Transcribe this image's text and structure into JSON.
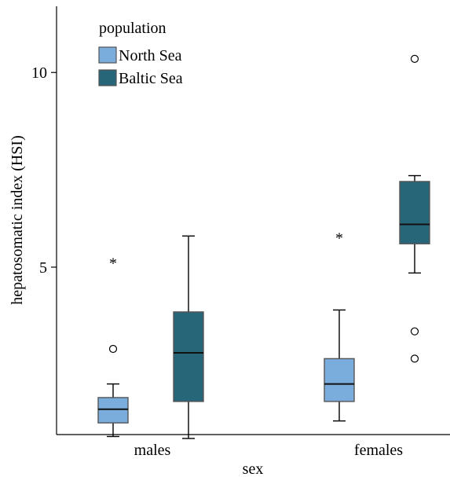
{
  "chart_data": {
    "type": "boxplot",
    "xlabel": "sex",
    "ylabel": "hepatosomatic index (HSI)",
    "categories": [
      "males",
      "females"
    ],
    "yticks": [
      5,
      10
    ],
    "ylim": [
      0.7,
      11.7
    ],
    "legend": {
      "title": "population",
      "placement": "top-left"
    },
    "series": [
      {
        "name": "North Sea",
        "color": "#7aaddc",
        "boxes": [
          {
            "category": "males",
            "whisker_low": 0.65,
            "q1": 1.0,
            "median": 1.35,
            "q3": 1.65,
            "whisker_high": 2.0,
            "outliers": [
              {
                "value": 2.9,
                "symbol": "circle"
              },
              {
                "value": 5.15,
                "symbol": "star"
              }
            ]
          },
          {
            "category": "females",
            "whisker_low": 1.05,
            "q1": 1.55,
            "median": 2.0,
            "q3": 2.65,
            "whisker_high": 3.9,
            "outliers": [
              {
                "value": 5.8,
                "symbol": "star"
              }
            ]
          }
        ]
      },
      {
        "name": "Baltic Sea",
        "color": "#276579",
        "boxes": [
          {
            "category": "males",
            "whisker_low": 0.6,
            "q1": 1.55,
            "median": 2.8,
            "q3": 3.85,
            "whisker_high": 5.8,
            "outliers": []
          },
          {
            "category": "females",
            "whisker_low": 4.85,
            "q1": 5.6,
            "median": 6.1,
            "q3": 7.2,
            "whisker_high": 7.35,
            "outliers": [
              {
                "value": 3.35,
                "symbol": "circle"
              },
              {
                "value": 2.65,
                "symbol": "circle"
              },
              {
                "value": 10.35,
                "symbol": "circle"
              }
            ]
          }
        ]
      }
    ]
  }
}
